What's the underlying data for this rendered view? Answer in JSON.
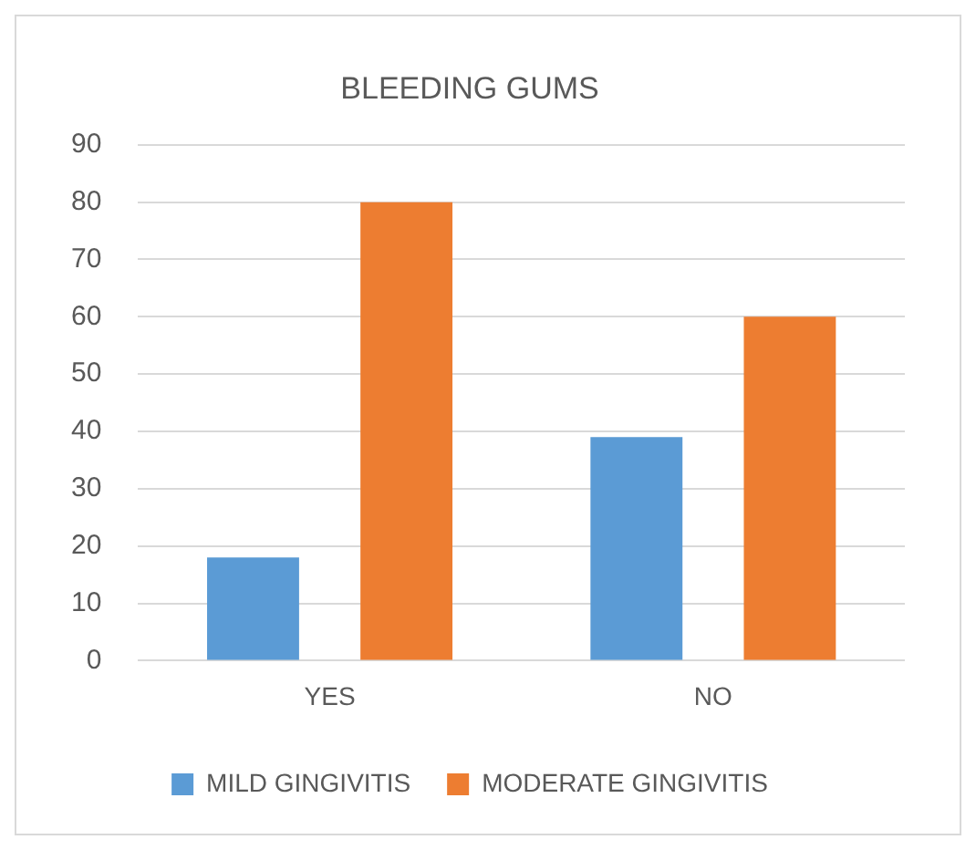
{
  "chart_data": {
    "type": "bar",
    "title": "BLEEDING GUMS",
    "categories": [
      "YES",
      "NO"
    ],
    "series": [
      {
        "name": "MILD GINGIVITIS",
        "color": "#5b9bd5",
        "values": [
          18,
          39
        ]
      },
      {
        "name": "MODERATE GINGIVITIS",
        "color": "#ed7d31",
        "values": [
          80,
          60
        ]
      }
    ],
    "ylim": [
      0,
      90
    ],
    "yticks": [
      0,
      10,
      20,
      30,
      40,
      50,
      60,
      70,
      80,
      90
    ],
    "grid": "y",
    "legend": "bottom"
  }
}
